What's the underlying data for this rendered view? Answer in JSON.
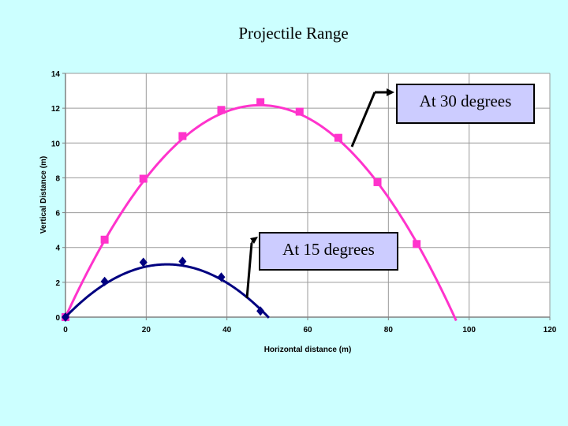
{
  "slide": {
    "title": "Projectile Range"
  },
  "callouts": {
    "deg30": "At 30 degrees",
    "deg15": "At 15 degrees"
  },
  "colors": {
    "background": "#ccffff",
    "plot_bg": "#ffffff",
    "series30": "#ff33cc",
    "series15": "#000080",
    "callout_fill": "#ccccff"
  },
  "chart_data": {
    "type": "line",
    "xlabel": "Horizontal distance (m)",
    "ylabel": "Vertical Distance (m)",
    "xlim": [
      0,
      120
    ],
    "ylim": [
      0,
      14
    ],
    "xticks": [
      0,
      20,
      40,
      60,
      80,
      100,
      120
    ],
    "yticks": [
      0,
      2,
      4,
      6,
      8,
      10,
      12,
      14
    ],
    "grid": true,
    "series": [
      {
        "color": "#ff33cc",
        "marker": "square",
        "x": [
          0,
          9.7,
          19.3,
          29,
          38.6,
          48.3,
          58,
          67.6,
          77.3,
          87
        ],
        "y": [
          0,
          4.45,
          7.95,
          10.4,
          11.9,
          12.35,
          11.8,
          10.3,
          7.75,
          4.2
        ],
        "curve": {
          "type": "parabola",
          "a": -0.00524,
          "b": 0.5051,
          "x_end": 96.8
        }
      },
      {
        "color": "#000080",
        "marker": "diamond",
        "x": [
          0,
          9.7,
          19.3,
          29,
          38.6,
          48.3
        ],
        "y": [
          0,
          2.05,
          3.15,
          3.2,
          2.3,
          0.35
        ],
        "curve": {
          "type": "parabola",
          "a": -0.0048,
          "b": 0.2412,
          "x_end": 50.4
        }
      }
    ]
  }
}
